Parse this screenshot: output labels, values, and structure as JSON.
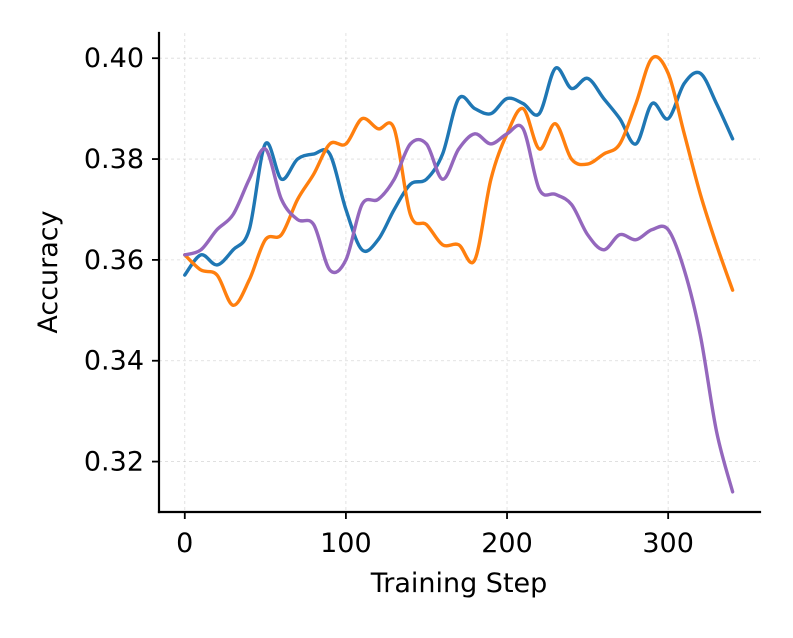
{
  "chart_data": {
    "type": "line",
    "title": "",
    "xlabel": "Training Step",
    "ylabel": "Accuracy",
    "xlim": [
      -16,
      357
    ],
    "ylim": [
      0.31,
      0.405
    ],
    "x_ticks": [
      0,
      100,
      200,
      300
    ],
    "x_tick_labels": [
      "0",
      "100",
      "200",
      "300"
    ],
    "y_ticks": [
      0.32,
      0.34,
      0.36,
      0.38,
      0.4
    ],
    "y_tick_labels": [
      "0.32",
      "0.34",
      "0.36",
      "0.38",
      "0.40"
    ],
    "grid": true,
    "legend": "none",
    "x": [
      0,
      10,
      20,
      30,
      40,
      50,
      60,
      70,
      80,
      90,
      100,
      110,
      120,
      130,
      140,
      150,
      160,
      170,
      180,
      190,
      200,
      210,
      220,
      230,
      240,
      250,
      260,
      270,
      280,
      290,
      300,
      310,
      320,
      330,
      340
    ],
    "series": [
      {
        "color": "#1f77b4",
        "values": [
          0.357,
          0.361,
          0.359,
          0.362,
          0.366,
          0.383,
          0.376,
          0.38,
          0.381,
          0.381,
          0.37,
          0.362,
          0.364,
          0.37,
          0.375,
          0.376,
          0.381,
          0.392,
          0.39,
          0.389,
          0.392,
          0.391,
          0.389,
          0.398,
          0.394,
          0.396,
          0.392,
          0.388,
          0.383,
          0.391,
          0.388,
          0.395,
          0.397,
          0.391,
          0.384
        ]
      },
      {
        "color": "#ff7f0e",
        "values": [
          0.361,
          0.358,
          0.357,
          0.351,
          0.356,
          0.364,
          0.365,
          0.372,
          0.377,
          0.383,
          0.383,
          0.388,
          0.386,
          0.386,
          0.369,
          0.367,
          0.363,
          0.363,
          0.36,
          0.376,
          0.385,
          0.39,
          0.382,
          0.387,
          0.38,
          0.379,
          0.381,
          0.383,
          0.391,
          0.4,
          0.397,
          0.385,
          0.373,
          0.363,
          0.354
        ]
      },
      {
        "color": "#9467bd",
        "values": [
          0.361,
          0.362,
          0.366,
          0.369,
          0.376,
          0.382,
          0.372,
          0.368,
          0.367,
          0.358,
          0.36,
          0.371,
          0.372,
          0.376,
          0.383,
          0.383,
          0.376,
          0.382,
          0.385,
          0.383,
          0.385,
          0.386,
          0.374,
          0.373,
          0.371,
          0.365,
          0.362,
          0.365,
          0.364,
          0.366,
          0.366,
          0.358,
          0.345,
          0.326,
          0.314
        ]
      }
    ]
  }
}
